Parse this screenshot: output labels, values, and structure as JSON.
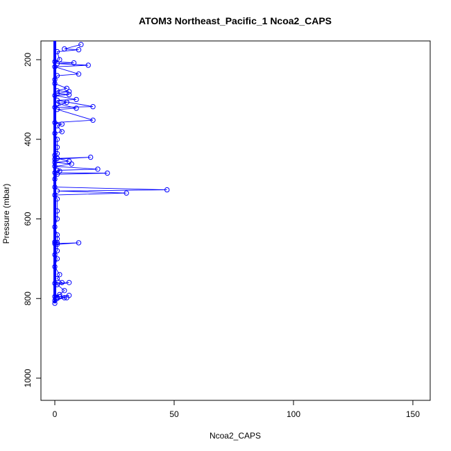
{
  "chart_data": {
    "type": "line",
    "title": "ATOM3 Northeast_Pacific_1 Ncoa2_CAPS",
    "xlabel": "Ncoa2_CAPS",
    "ylabel": "Pressure (mbar)",
    "xlim": [
      0,
      150
    ],
    "ylim": [
      1050,
      160
    ],
    "y_reversed": true,
    "x_ticks": [
      0,
      50,
      100,
      150
    ],
    "y_ticks": [
      200,
      400,
      600,
      800,
      1000
    ],
    "grid": false,
    "legend": "none",
    "series_color": "#0000ff",
    "marker": "open-circle",
    "series": [
      {
        "x": [
          11,
          4,
          10,
          1,
          2,
          0,
          8,
          1,
          14,
          0,
          10,
          1,
          0,
          0,
          5,
          1,
          6,
          1,
          6,
          0,
          9,
          1,
          16,
          0,
          5,
          1,
          9,
          1,
          16,
          0,
          3,
          1,
          3,
          0,
          1,
          1,
          1,
          0,
          1,
          0,
          15,
          1,
          6,
          0,
          7,
          0,
          18,
          1,
          2,
          0,
          22,
          1,
          0,
          0,
          47,
          1,
          30,
          0,
          1,
          1,
          1,
          0,
          1,
          1,
          1,
          0,
          1,
          0,
          10,
          1,
          1,
          0,
          1,
          0,
          2,
          1,
          3,
          0,
          6,
          1,
          4,
          2,
          0,
          1,
          6,
          2,
          5,
          1,
          4,
          0,
          0
        ],
        "y": [
          162,
          173,
          175,
          180,
          200,
          205,
          208,
          210,
          214,
          218,
          236,
          240,
          250,
          260,
          272,
          278,
          280,
          285,
          288,
          290,
          300,
          302,
          318,
          320,
          307,
          310,
          322,
          325,
          352,
          358,
          362,
          366,
          381,
          385,
          400,
          420,
          436,
          440,
          448,
          450,
          445,
          448,
          455,
          458,
          462,
          468,
          475,
          478,
          480,
          484,
          485,
          488,
          500,
          520,
          527,
          530,
          535,
          540,
          550,
          580,
          600,
          620,
          640,
          650,
          660,
          658,
          660,
          662,
          660,
          664,
          680,
          690,
          700,
          720,
          740,
          750,
          760,
          762,
          760,
          765,
          780,
          790,
          795,
          797,
          792,
          795,
          798,
          800,
          798,
          805,
          812
        ]
      }
    ]
  }
}
